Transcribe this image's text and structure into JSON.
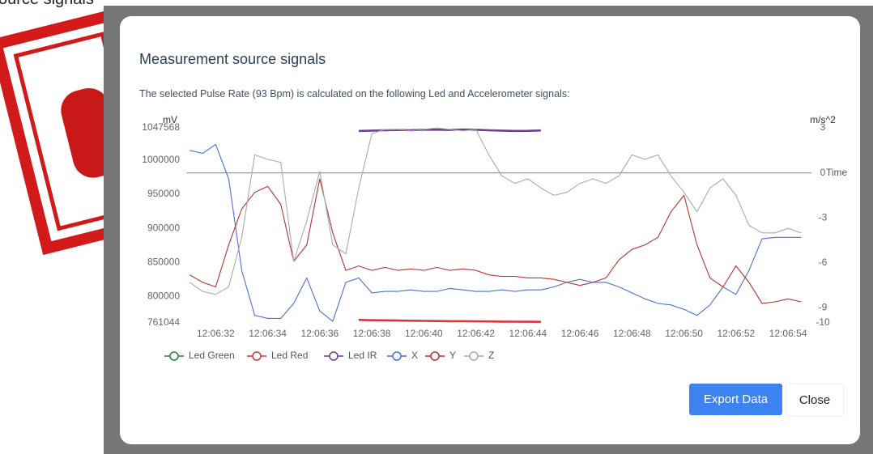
{
  "background_text": "ource signals",
  "dialog": {
    "title": "Measurement source signals",
    "subtitle": "The selected Pulse Rate (93 Bpm) is calculated on the following Led and Accelerometer signals:",
    "buttons": [
      "Export Data",
      "Close"
    ]
  },
  "chart_data": {
    "type": "line",
    "ylabel": "mV",
    "y2label": "m/s^2",
    "xlabel": "Time",
    "x": [
      31,
      31.5,
      32,
      32.5,
      33,
      33.5,
      34,
      34.5,
      35,
      35.5,
      36,
      36.5,
      37,
      37.5,
      38,
      38.5,
      39,
      39.5,
      40,
      40.5,
      41,
      41.5,
      42,
      42.5,
      43,
      43.5,
      44,
      44.5,
      45,
      45.5,
      46,
      46.5,
      47,
      47.5,
      48,
      48.5,
      49,
      49.5,
      50,
      50.5,
      51,
      51.5,
      52,
      52.5,
      53,
      53.5,
      54,
      54.5
    ],
    "xlim": [
      30.9,
      54.9
    ],
    "xticks": [
      {
        "value": 32,
        "label": "12:06:32"
      },
      {
        "value": 34,
        "label": "12:06:34"
      },
      {
        "value": 36,
        "label": "12:06:36"
      },
      {
        "value": 38,
        "label": "12:06:38"
      },
      {
        "value": 40,
        "label": "12:06:40"
      },
      {
        "value": 42,
        "label": "12:06:42"
      },
      {
        "value": 44,
        "label": "12:06:44"
      },
      {
        "value": 46,
        "label": "12:06:46"
      },
      {
        "value": 48,
        "label": "12:06:48"
      },
      {
        "value": 50,
        "label": "12:06:50"
      },
      {
        "value": 52,
        "label": "12:06:52"
      },
      {
        "value": 54,
        "label": "12:06:54"
      }
    ],
    "ylim": [
      761044,
      1047568
    ],
    "yticks": [
      761044,
      800000,
      850000,
      900000,
      950000,
      1000000,
      1047568
    ],
    "y2lim": [
      -10,
      3
    ],
    "y2ticks": [
      -10,
      -9,
      -6,
      -3,
      0,
      3
    ],
    "series": [
      {
        "name": "Led Green",
        "color": "#2e7d32",
        "values": [
          null,
          null,
          null,
          null,
          null,
          null,
          null,
          null,
          null,
          null,
          null,
          null,
          null,
          null,
          null,
          null,
          null,
          null,
          null,
          null,
          null,
          null,
          null,
          null,
          null,
          null,
          null,
          null,
          null,
          null,
          null,
          null,
          null,
          null,
          null,
          null,
          null,
          null,
          null,
          null,
          null,
          null,
          null,
          null,
          null,
          null,
          null,
          null
        ]
      },
      {
        "name": "Led Red",
        "color": "#d0393b",
        "values": [
          null,
          null,
          null,
          null,
          null,
          null,
          null,
          null,
          null,
          null,
          null,
          null,
          null,
          765500,
          765000,
          764800,
          764500,
          764200,
          764000,
          763800,
          763600,
          763500,
          763300,
          763200,
          763000,
          762800,
          762700,
          762600,
          null,
          null,
          null,
          null,
          null,
          null,
          null,
          null,
          null,
          null,
          null,
          null,
          null,
          null,
          null,
          null,
          null,
          null,
          null,
          null
        ]
      },
      {
        "name": "Led IR",
        "color": "#6b3f8c",
        "values": [
          null,
          null,
          null,
          null,
          null,
          null,
          null,
          null,
          null,
          null,
          null,
          null,
          null,
          1043000,
          1043500,
          1044000,
          1044500,
          1044000,
          1044800,
          1045000,
          1044500,
          1045200,
          1044800,
          1044000,
          1043500,
          1043000,
          1043200,
          1043800,
          null,
          null,
          null,
          null,
          null,
          null,
          null,
          null,
          null,
          null,
          null,
          null,
          null,
          null,
          null,
          null,
          null,
          null,
          null,
          null
        ]
      },
      {
        "name": "X",
        "color": "#4a6fd6",
        "axis": "y2",
        "values": [
          1.5,
          1.3,
          1.9,
          -0.4,
          -6.5,
          -9.5,
          -9.7,
          -9.7,
          -8.7,
          -7,
          -9.2,
          -9.9,
          -7.3,
          -7,
          -8,
          -7.9,
          -7.9,
          -7.8,
          -7.9,
          -7.9,
          -7.7,
          -7.8,
          -7.9,
          -7.9,
          -7.8,
          -7.9,
          -7.8,
          -7.8,
          -7.6,
          -7.3,
          -7.1,
          -7.3,
          -7.3,
          -7.6,
          -8,
          -8.4,
          -8.7,
          -8.8,
          -9.1,
          -9.5,
          -8.8,
          -7.6,
          -8.1,
          -6.5,
          -4.4,
          -4.3,
          -4.3,
          -4.3
        ]
      },
      {
        "name": "Y",
        "color": "#b8322f",
        "axis": "y2",
        "values": [
          -6.8,
          -7.3,
          -7.6,
          -4.8,
          -2.4,
          -1.3,
          -0.9,
          -2.1,
          -5.9,
          -4.8,
          -0.4,
          -4,
          -6.5,
          -6.2,
          -6.5,
          -6.3,
          -6.5,
          -6.4,
          -6.5,
          -6.3,
          -6.5,
          -6.4,
          -6.5,
          -6.8,
          -6.9,
          -6.9,
          -7,
          -7,
          -7.1,
          -7.3,
          -7.5,
          -7.3,
          -7,
          -5.8,
          -5.1,
          -4.8,
          -4.3,
          -2.6,
          -1.5,
          -4.8,
          -7,
          -7.6,
          -6.2,
          -7.3,
          -8.7,
          -8.6,
          -8.4,
          -8.6
        ]
      },
      {
        "name": "Z",
        "color": "#aaaaaa",
        "axis": "y2",
        "values": [
          -7.3,
          -7.9,
          -8.1,
          -7.6,
          -4.3,
          1.2,
          0.9,
          0.7,
          -5.9,
          -3.2,
          0.1,
          -4.8,
          -5.4,
          -1,
          2.6,
          2.9,
          2.9,
          2.8,
          2.9,
          3,
          2.9,
          2.8,
          2.9,
          1.2,
          -0.2,
          -0.7,
          -0.4,
          -1,
          -1.5,
          -1.3,
          -0.7,
          -0.4,
          -0.7,
          -0.2,
          1.2,
          0.9,
          1.2,
          -0.2,
          -1.3,
          -2.6,
          -1,
          -0.4,
          -1.5,
          -3.5,
          -4,
          -4,
          -3.7,
          -4
        ]
      }
    ]
  }
}
